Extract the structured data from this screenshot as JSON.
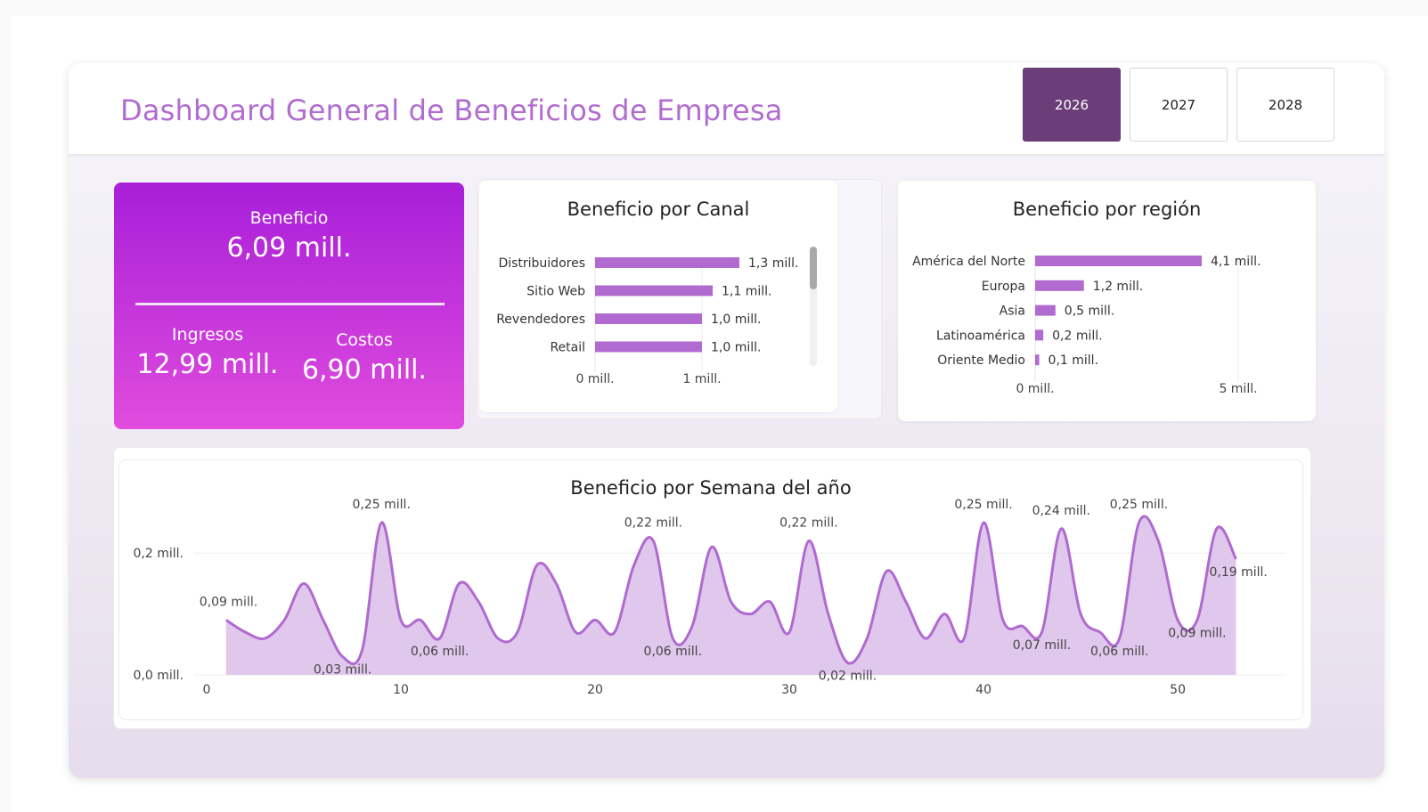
{
  "header": {
    "title": "Dashboard General de Beneficios de Empresa"
  },
  "years": [
    {
      "label": "2026",
      "active": true
    },
    {
      "label": "2027",
      "active": false
    },
    {
      "label": "2028",
      "active": false
    }
  ],
  "kpi": {
    "beneficio_label": "Beneficio",
    "beneficio_value": "6,09 mill.",
    "ingresos_label": "Ingresos",
    "ingresos_value": "12,99 mill.",
    "costos_label": "Costos",
    "costos_value": "6,90 mill."
  },
  "colors": {
    "accent": "#b26cd0",
    "bar": "#b06ad0",
    "active_year": "#6b3d79"
  },
  "chart_data": [
    {
      "type": "bar",
      "title": "Beneficio por Canal",
      "orientation": "horizontal",
      "categories": [
        "Distribuidores",
        "Sitio Web",
        "Revendedores",
        "Retail"
      ],
      "values": [
        1.35,
        1.1,
        1.0,
        1.0
      ],
      "data_labels": [
        "1,3 mill.",
        "1,1 mill.",
        "1,0 mill.",
        "1,0 mill."
      ],
      "xlim": [
        0,
        1.6
      ],
      "ticks": [
        {
          "value": 0,
          "label": "0 mill."
        },
        {
          "value": 1,
          "label": "1 mill."
        }
      ]
    },
    {
      "type": "bar",
      "title": "Beneficio por región",
      "orientation": "horizontal",
      "categories": [
        "América del Norte",
        "Europa",
        "Asia",
        "Latinoamérica",
        "Oriente Medio"
      ],
      "values": [
        4.1,
        1.2,
        0.5,
        0.2,
        0.1
      ],
      "data_labels": [
        "4,1 mill.",
        "1,2 mill.",
        "0,5 mill.",
        "0,2 mill.",
        "0,1 mill."
      ],
      "xlim": [
        0,
        5
      ],
      "ticks": [
        {
          "value": 0,
          "label": "0 mill."
        },
        {
          "value": 5,
          "label": "5 mill."
        }
      ]
    },
    {
      "type": "area",
      "title": "Beneficio por Semana del año",
      "xlim": [
        0,
        55
      ],
      "ylim": [
        0,
        0.25
      ],
      "x_ticks": [
        0,
        10,
        20,
        30,
        40,
        50
      ],
      "y_ticks": [
        {
          "value": 0,
          "label": "0,0 mill."
        },
        {
          "value": 0.2,
          "label": "0,2 mill."
        }
      ],
      "x": [
        1,
        2,
        3,
        4,
        5,
        6,
        7,
        8,
        9,
        10,
        11,
        12,
        13,
        14,
        15,
        16,
        17,
        18,
        19,
        20,
        21,
        22,
        23,
        24,
        25,
        26,
        27,
        28,
        29,
        30,
        31,
        32,
        33,
        34,
        35,
        36,
        37,
        38,
        39,
        40,
        41,
        42,
        43,
        44,
        45,
        46,
        47,
        48,
        49,
        50,
        51,
        52,
        53
      ],
      "values": [
        0.09,
        0.07,
        0.06,
        0.09,
        0.15,
        0.09,
        0.03,
        0.04,
        0.25,
        0.09,
        0.09,
        0.06,
        0.15,
        0.12,
        0.06,
        0.07,
        0.18,
        0.15,
        0.07,
        0.09,
        0.07,
        0.18,
        0.22,
        0.06,
        0.08,
        0.21,
        0.12,
        0.1,
        0.12,
        0.07,
        0.22,
        0.1,
        0.02,
        0.06,
        0.17,
        0.12,
        0.06,
        0.1,
        0.06,
        0.25,
        0.09,
        0.08,
        0.07,
        0.24,
        0.1,
        0.07,
        0.06,
        0.25,
        0.22,
        0.09,
        0.09,
        0.24,
        0.19
      ],
      "data_labels": [
        {
          "x": 1,
          "text": "0,09 mill."
        },
        {
          "x": 7,
          "text": "0,03 mill."
        },
        {
          "x": 9,
          "text": "0,25 mill."
        },
        {
          "x": 12,
          "text": "0,06 mill."
        },
        {
          "x": 23,
          "text": "0,22 mill."
        },
        {
          "x": 24,
          "text": "0,06 mill."
        },
        {
          "x": 31,
          "text": "0,22 mill."
        },
        {
          "x": 33,
          "text": "0,02 mill."
        },
        {
          "x": 40,
          "text": "0,25 mill."
        },
        {
          "x": 43,
          "text": "0,07 mill."
        },
        {
          "x": 44,
          "text": "0,24 mill."
        },
        {
          "x": 47,
          "text": "0,06 mill."
        },
        {
          "x": 48,
          "text": "0,25 mill."
        },
        {
          "x": 51,
          "text": "0,09 mill."
        },
        {
          "x": 53,
          "text": "0,19 mill."
        }
      ]
    }
  ]
}
